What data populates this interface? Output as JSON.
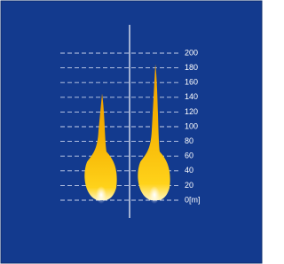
{
  "chart_data": {
    "type": "flame",
    "categories": [
      null,
      null
    ],
    "values": [
      145,
      185
    ],
    "color": "#f5b800",
    "ylim": [
      0,
      200
    ],
    "yticks": [
      {
        "value": 0,
        "label": "0[m]"
      },
      20,
      40,
      60,
      80,
      100,
      120,
      140,
      160,
      180,
      200
    ],
    "grid": true
  }
}
